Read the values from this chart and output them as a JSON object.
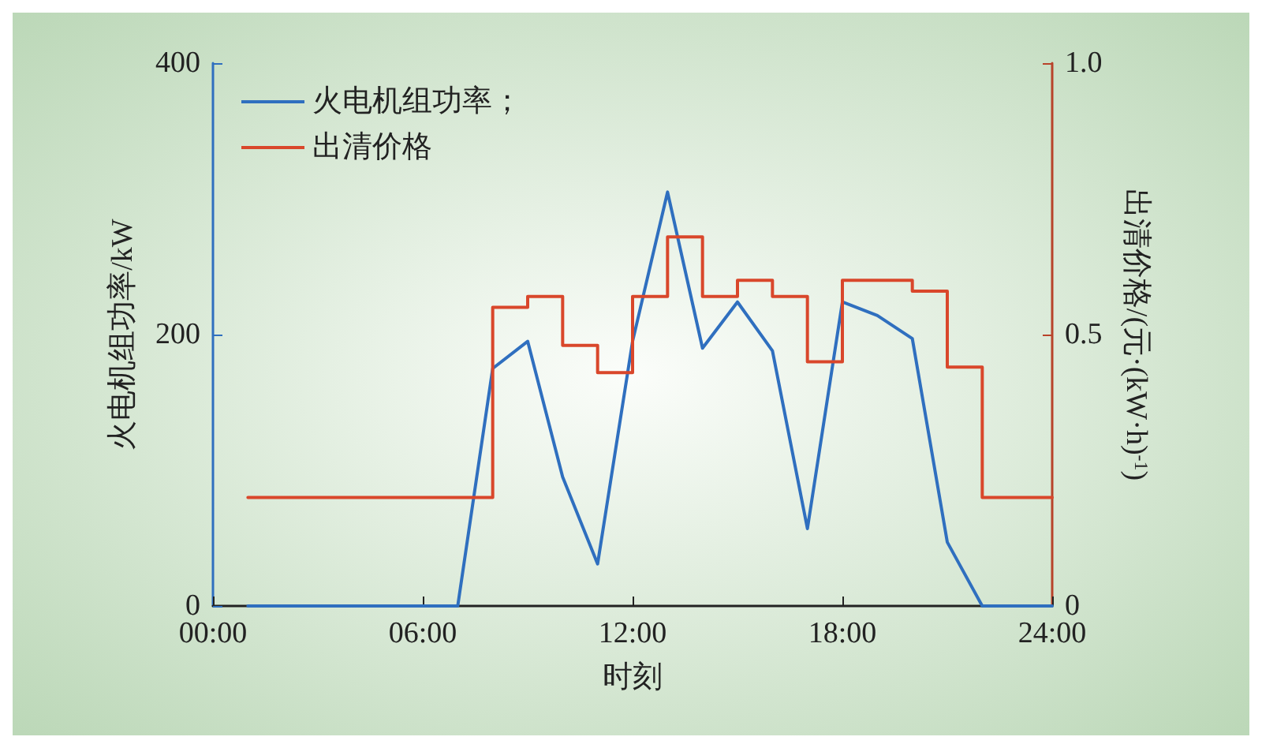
{
  "chart_data": {
    "type": "line",
    "xlabel": "时刻",
    "ylabel": "火电机组功率/kW",
    "y2label": "出清价格/(元·(kW·h)$^{-1}$)",
    "x": [
      1,
      2,
      3,
      4,
      5,
      6,
      7,
      8,
      9,
      10,
      11,
      12,
      13,
      14,
      15,
      16,
      17,
      18,
      19,
      20,
      21,
      22,
      23,
      24
    ],
    "series": [
      {
        "name": "火电机组功率；",
        "color": "#2f6fbf",
        "values": [
          0,
          0,
          0,
          0,
          0,
          0,
          0,
          175,
          195,
          95,
          31,
          195,
          305,
          190,
          224,
          188,
          57,
          224,
          214,
          197,
          47,
          0,
          0,
          0
        ]
      },
      {
        "name": "出清价格",
        "type": "step",
        "axis": "y2",
        "color": "#d9472b",
        "values": [
          0.2,
          0.2,
          0.2,
          0.2,
          0.2,
          0.2,
          0.2,
          0.55,
          0.57,
          0.48,
          0.43,
          0.57,
          0.68,
          0.57,
          0.6,
          0.57,
          0.45,
          0.6,
          0.6,
          0.58,
          0.44,
          0.2,
          0.2,
          0.2
        ]
      }
    ],
    "xlim": [
      0,
      24
    ],
    "xticks": [
      {
        "value": 0,
        "label": "00:00"
      },
      {
        "value": 6,
        "label": "06:00"
      },
      {
        "value": 12,
        "label": "12:00"
      },
      {
        "value": 18,
        "label": "18:00"
      },
      {
        "value": 24,
        "label": "24:00"
      }
    ],
    "ylim": [
      0,
      400
    ],
    "yticks": [
      0,
      200,
      400
    ],
    "y2lim": [
      0,
      1
    ],
    "y2ticks": [
      0,
      {
        "value": 0.5,
        "label": "0.5"
      },
      {
        "value": 1,
        "label": "1.0"
      }
    ],
    "legend": "top left",
    "grid": false,
    "marker": "none",
    "line_style": "solid"
  }
}
